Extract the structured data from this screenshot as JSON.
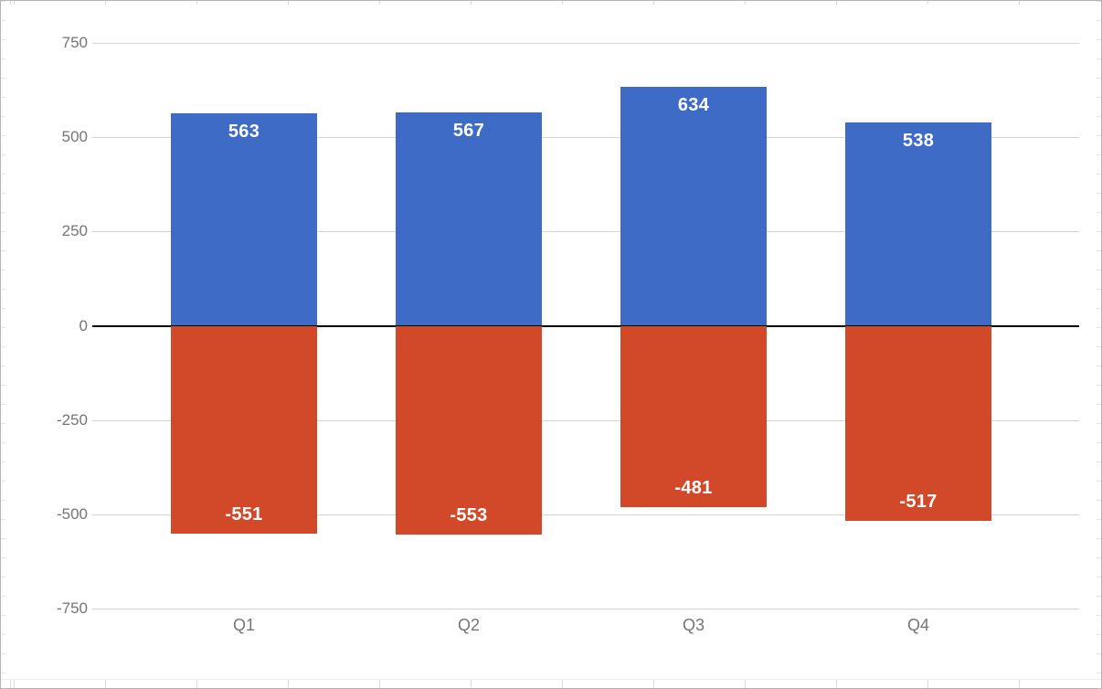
{
  "chart_data": {
    "type": "bar",
    "title": "",
    "categories": [
      "Q1",
      "Q2",
      "Q3",
      "Q4"
    ],
    "series": [
      {
        "name": "positive-series",
        "color": "#3d6bc5",
        "values": [
          563,
          567,
          634,
          538
        ]
      },
      {
        "name": "negative-series",
        "color": "#d2492a",
        "values": [
          -551,
          -553,
          -481,
          -517
        ]
      }
    ],
    "ylim": [
      -750,
      750
    ],
    "yticks": [
      750,
      500,
      250,
      0,
      -250,
      -500,
      -750
    ],
    "grid": true,
    "legend": "none",
    "xlabel": "",
    "ylabel": "",
    "colors": {
      "axis_text": "#757575",
      "gridline": "#d6d6d6",
      "zero_line": "#000000",
      "value_label": "#ffffff",
      "background": "#ffffff"
    }
  }
}
